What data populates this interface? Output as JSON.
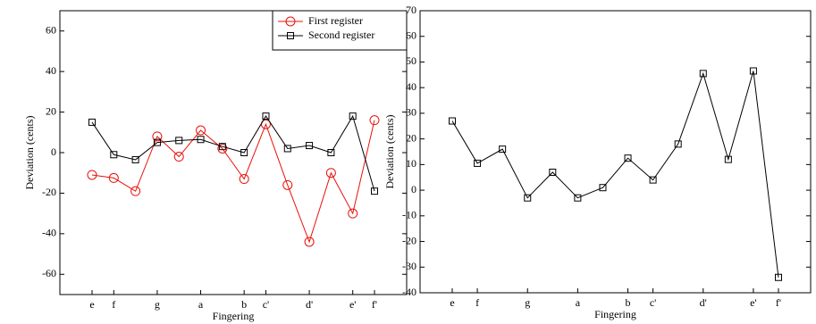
{
  "chart_data": [
    {
      "type": "line",
      "ylabel": "Deviation (cents)",
      "xlabel": "Fingering",
      "categories": [
        "e",
        "f",
        null,
        "g",
        null,
        "a",
        null,
        "b",
        "c'",
        null,
        "d'",
        null,
        "e'",
        "f'"
      ],
      "series": [
        {
          "name": "First register",
          "color": "#e8120c",
          "marker": "circle",
          "values": [
            -11,
            -12.5,
            -19,
            8,
            -2,
            11,
            2,
            -13,
            14,
            -16,
            -44,
            -10,
            -30,
            16
          ]
        },
        {
          "name": "Second register",
          "color": "#000000",
          "marker": "square",
          "values": [
            15,
            -1,
            -3.5,
            5,
            6,
            6.5,
            3,
            0,
            18,
            2,
            3.5,
            0,
            18,
            -19
          ]
        }
      ],
      "ylim": [
        -70,
        70
      ],
      "yticks": [
        -60,
        -40,
        -20,
        0,
        20,
        40,
        60
      ],
      "legend": "upper right"
    },
    {
      "type": "line",
      "ylabel": "Deviation (cents)",
      "xlabel": "Fingering",
      "categories": [
        "e",
        "f",
        null,
        "g",
        null,
        "a",
        null,
        "b",
        "c'",
        null,
        "d'",
        null,
        "e'",
        "f'"
      ],
      "color": "#000000",
      "marker": "square",
      "values": [
        27,
        10.5,
        16,
        -3,
        7,
        -3,
        1,
        12.5,
        4,
        18,
        45.5,
        12,
        46.5,
        -34
      ],
      "ylim": [
        -40,
        70
      ],
      "yticks": [
        -40,
        -30,
        -20,
        -10,
        0,
        10,
        20,
        30,
        40,
        50,
        60,
        70
      ]
    }
  ]
}
